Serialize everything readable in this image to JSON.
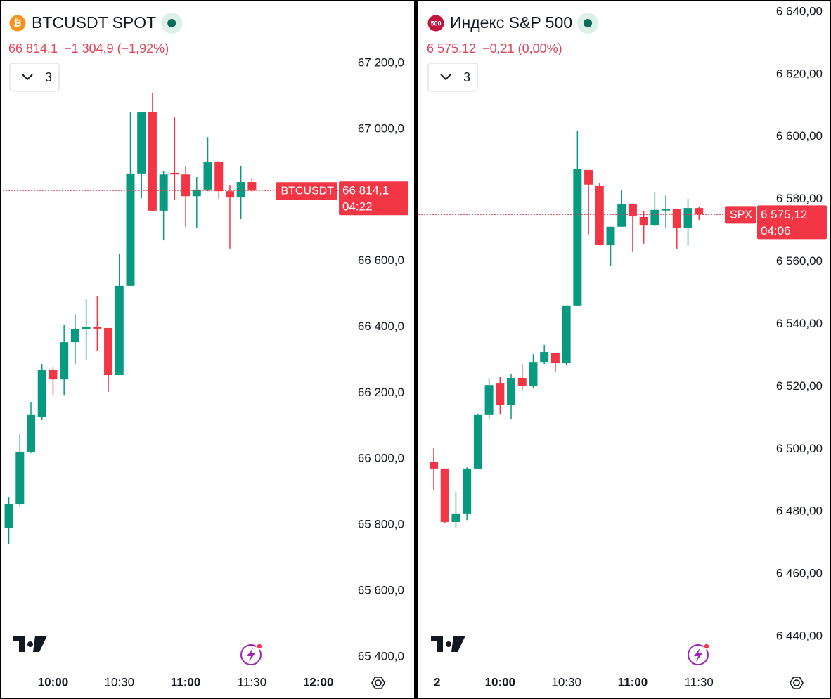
{
  "chart_data": [
    {
      "type": "candlestick",
      "icon_text": "₿",
      "icon_color": "#f7931a",
      "title": "BTCUSDT SPOT",
      "last_price": "66 814,1",
      "change": "−1 304,9 (−1,92%)",
      "interval": "3",
      "symbol_label": "BTCUSDT",
      "price_label": "66 814,1",
      "countdown": "04:22",
      "x": [
        "9:40",
        "9:45",
        "9:50",
        "9:55",
        "10:00",
        "10:05",
        "10:10",
        "10:15",
        "10:20",
        "10:25",
        "10:30",
        "10:35",
        "10:40",
        "10:45",
        "10:50",
        "10:55",
        "11:00",
        "11:05",
        "11:10",
        "11:15",
        "11:20",
        "11:25",
        "11:30"
      ],
      "open": [
        65790,
        65864,
        66022,
        66128,
        66269,
        66241,
        66354,
        66393,
        66399,
        66397,
        66254,
        66525,
        66866,
        67051,
        66753,
        66868,
        66863,
        66797,
        66817,
        66900,
        66812,
        66793,
        66840
      ],
      "high": [
        65883,
        66075,
        66173,
        66288,
        66280,
        66407,
        66439,
        66486,
        66495,
        66397,
        66621,
        67051,
        67051,
        67111,
        66874,
        67038,
        66889,
        66855,
        66976,
        66904,
        66829,
        66887,
        66853
      ],
      "low": [
        65741,
        65858,
        66018,
        66118,
        66194,
        66194,
        66288,
        66301,
        66327,
        66203,
        66254,
        66525,
        66791,
        66753,
        66663,
        66785,
        66704,
        66701,
        66812,
        66789,
        66638,
        66727,
        66810
      ],
      "close": [
        65864,
        66022,
        66133,
        66269,
        66241,
        66354,
        66393,
        66399,
        66395,
        66254,
        66525,
        66866,
        67051,
        66753,
        66863,
        66863,
        66797,
        66817,
        66900,
        66812,
        66793,
        66840,
        66814.1
      ],
      "up_color": "#089981",
      "down_color": "#f23645",
      "xlim": [
        "9:36",
        "12:09"
      ],
      "xticks": [
        "10:00",
        "10:30",
        "11:00",
        "11:30",
        "12:00"
      ],
      "ylim": [
        65357,
        67392
      ],
      "yticks": [
        {
          "value": 67200,
          "label": "67 200,0"
        },
        {
          "value": 67000,
          "label": "67 000,0"
        },
        {
          "value": 66600,
          "label": "66 600,0"
        },
        {
          "value": 66400,
          "label": "66 400,0"
        },
        {
          "value": 66200,
          "label": "66 200,0"
        },
        {
          "value": 66000,
          "label": "66 000,0"
        },
        {
          "value": 65800,
          "label": "65 800,0"
        },
        {
          "value": 65600,
          "label": "65 600,0"
        },
        {
          "value": 65400,
          "label": "65 400,0"
        }
      ]
    },
    {
      "type": "candlestick",
      "icon_text": "500",
      "icon_color": "#c0143c",
      "title": "Индекс S&P 500",
      "last_price": "6 575,12",
      "change": "−0,21 (0,00%)",
      "interval": "3",
      "symbol_label": "SPX",
      "price_label": "6 575,12",
      "countdown": "04:06",
      "x": [
        "9:30",
        "9:35",
        "9:40",
        "9:45",
        "9:50",
        "9:55",
        "10:00",
        "10:05",
        "10:10",
        "10:15",
        "10:20",
        "10:25",
        "10:30",
        "10:35",
        "10:40",
        "10:45",
        "10:50",
        "10:55",
        "11:00",
        "11:05",
        "11:10",
        "11:15",
        "11:20",
        "11:25",
        "11:30"
      ],
      "open": [
        6495.8,
        6493.8,
        6476.7,
        6479.4,
        6493.8,
        6510.9,
        6521.2,
        6514.2,
        6522.8,
        6520.1,
        6527.7,
        6530.9,
        6527.5,
        6546,
        6589.4,
        6584.2,
        6565.3,
        6571.2,
        6578.4,
        6574.3,
        6571.8,
        6576.4,
        6576.8,
        6570.7,
        6577.2
      ],
      "high": [
        6500.3,
        6493.8,
        6486.1,
        6494.2,
        6511.3,
        6522.8,
        6523.2,
        6524.1,
        6527.3,
        6530.4,
        6533.4,
        6530.9,
        6546,
        6602,
        6589.4,
        6585.3,
        6571.2,
        6583.1,
        6578.4,
        6576.1,
        6582.2,
        6581.5,
        6576.8,
        6580.2,
        6577.7
      ],
      "low": [
        6487,
        6476.4,
        6474.9,
        6477.3,
        6493.8,
        6509.7,
        6511.1,
        6509.7,
        6518.5,
        6519.4,
        6527.3,
        6524.6,
        6526.8,
        6546,
        6568.7,
        6565.3,
        6558.6,
        6571.2,
        6563.1,
        6565.8,
        6571.4,
        6570.9,
        6564.2,
        6565.1,
        6573.4
      ],
      "close": [
        6493.8,
        6476.7,
        6479.4,
        6493.8,
        6510.9,
        6520.5,
        6514.2,
        6522.8,
        6520.1,
        6527.7,
        6531.1,
        6527.5,
        6546,
        6589.6,
        6584.7,
        6565.3,
        6571.2,
        6578.4,
        6574.5,
        6571.8,
        6576.6,
        6576.8,
        6570.7,
        6577.2,
        6575.12
      ],
      "up_color": "#089981",
      "down_color": "#f23645",
      "xlim": [
        "9:23",
        "11:56"
      ],
      "xticks": [
        {
          "value": "9:30",
          "label": "2"
        },
        "10:00",
        "10:30",
        "11:00",
        "11:30"
      ],
      "ylim": [
        6429,
        6643.8
      ],
      "yticks": [
        {
          "value": 6640,
          "label": "6 640,00"
        },
        {
          "value": 6620,
          "label": "6 620,00"
        },
        {
          "value": 6600,
          "label": "6 600,00"
        },
        {
          "value": 6580,
          "label": "6 580,00"
        },
        {
          "value": 6560,
          "label": "6 560,00"
        },
        {
          "value": 6540,
          "label": "6 540,00"
        },
        {
          "value": 6520,
          "label": "6 520,00"
        },
        {
          "value": 6500,
          "label": "6 500,00"
        },
        {
          "value": 6480,
          "label": "6 480,00"
        },
        {
          "value": 6460,
          "label": "6 460,00"
        },
        {
          "value": 6440,
          "label": "6 440,00"
        }
      ]
    }
  ]
}
